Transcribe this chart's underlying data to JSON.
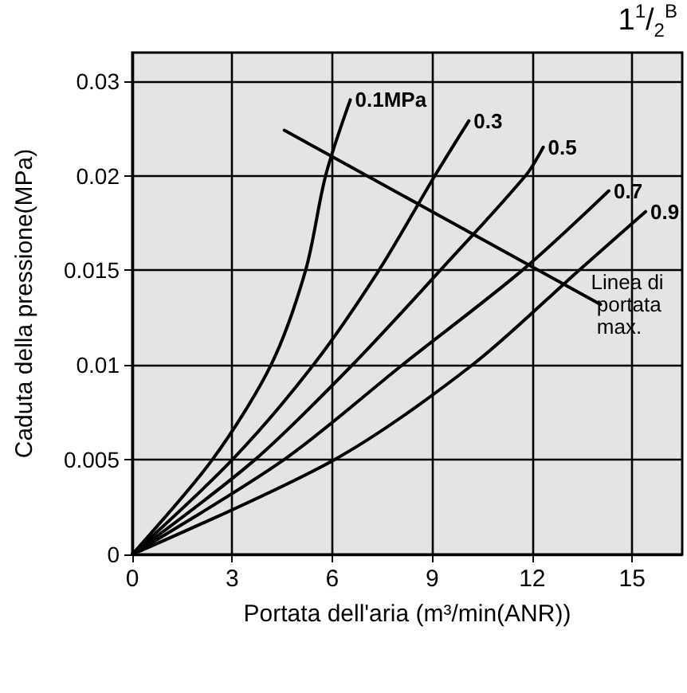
{
  "chart_data": {
    "type": "line",
    "subtitle": "1$^{1}$/$_{2}$$^{B}$",
    "xlabel": "Portata dell'aria (m³/min(ANR))",
    "ylabel": "Caduta della pressione(MPa)",
    "xlim": [
      0,
      16.5
    ],
    "xticks": [
      0,
      3,
      6,
      9,
      12,
      15
    ],
    "ylim": [
      0,
      0.0265
    ],
    "yticks": [
      0,
      0.005,
      0.01,
      0.015,
      0.02,
      {
        "value": 0.025,
        "label": "0.03"
      }
    ],
    "grid": true,
    "legend": false,
    "marker": "none",
    "line_style": "solid",
    "series": [
      {
        "name": "0.1MPa",
        "color": "#000000",
        "x": [
          0,
          2.4,
          4.16,
          5.2,
          5.8,
          6.54
        ],
        "values": [
          0,
          0.005,
          0.01,
          0.015,
          0.02,
          0.024
        ]
      },
      {
        "name": "0.3",
        "color": "#000000",
        "x": [
          0,
          3.0,
          5.43,
          7.4,
          9.08,
          10.1
        ],
        "values": [
          0,
          0.005,
          0.01,
          0.015,
          0.02,
          0.0229
        ]
      },
      {
        "name": "0.5",
        "color": "#000000",
        "x": [
          0,
          3.68,
          6.6,
          9.24,
          11.8,
          12.33
        ],
        "values": [
          0,
          0.005,
          0.01,
          0.015,
          0.02,
          0.0215
        ]
      },
      {
        "name": "0.7",
        "color": "#000000",
        "x": [
          0,
          4.55,
          8.1,
          11.7,
          14.3
        ],
        "values": [
          0,
          0.005,
          0.01,
          0.015,
          0.0192
        ]
      },
      {
        "name": "0.9",
        "color": "#000000",
        "x": [
          0,
          6.06,
          10.2,
          13.4,
          15.4
        ],
        "values": [
          0,
          0.005,
          0.01,
          0.015,
          0.0181
        ]
      },
      {
        "name": "Linea di portata max.",
        "color": "#000000",
        "x": [
          4.56,
          14.05
        ],
        "values": [
          0.0224,
          0.0132
        ]
      }
    ]
  }
}
